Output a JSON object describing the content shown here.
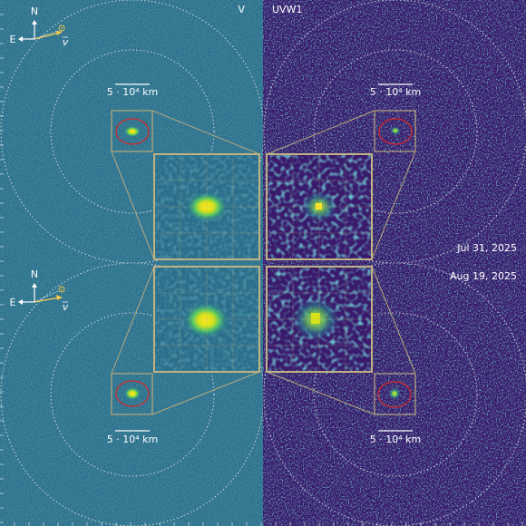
{
  "panels": [
    {
      "filter": "V"
    },
    {
      "filter": "UVW1"
    }
  ],
  "epochs": [
    {
      "date": "Jul 31, 2025"
    },
    {
      "date": "Aug 19, 2025"
    }
  ],
  "compass": {
    "north": "N",
    "east": "E",
    "velocity": "v"
  },
  "scale_bar": "5 · 10⁴ km"
}
